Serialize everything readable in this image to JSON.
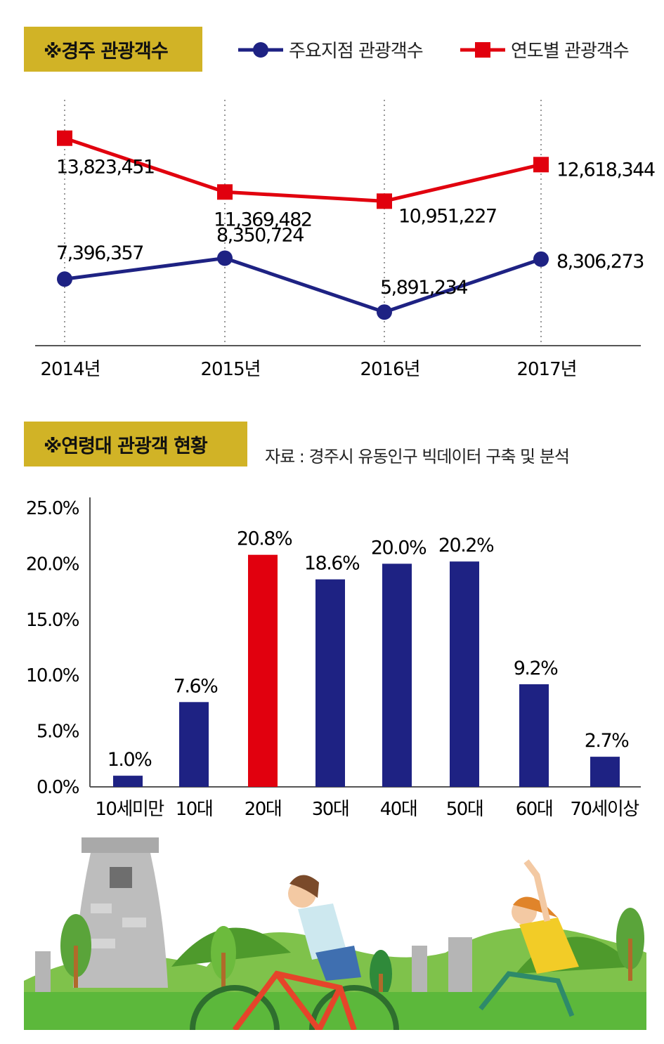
{
  "section1": {
    "title": "※경주 관광객수"
  },
  "section2": {
    "title": "※연령대 관광객 현황",
    "source": "자료 : 경주시 유동인구 빅데이터 구축 및 분석"
  },
  "colors": {
    "blue": "#1e2283",
    "red": "#e1000e",
    "gold": "#d1b326",
    "grass": "#5cb83b"
  },
  "chart_data": [
    {
      "type": "line",
      "title": "※경주 관광객수",
      "categories": [
        "2014년",
        "2015년",
        "2016년",
        "2017년"
      ],
      "series": [
        {
          "name": "주요지점 관광객수",
          "color": "#1e2283",
          "marker": "circle",
          "values": [
            7396357,
            8350724,
            5891234,
            8306273
          ],
          "labels": [
            "7,396,357",
            "8,350,724",
            "5,891,234",
            "8,306,273"
          ]
        },
        {
          "name": "연도별 관광객수",
          "color": "#e1000e",
          "marker": "square",
          "values": [
            13823451,
            11369482,
            10951227,
            12618344
          ],
          "labels": [
            "13,823,451",
            "11,369,482",
            "10,951,227",
            "12,618,344"
          ]
        }
      ],
      "grid": "vertical dotted lines",
      "legend": "top-right"
    },
    {
      "type": "bar",
      "title": "※연령대 관광객 현황",
      "categories": [
        "10세미만",
        "10대",
        "20대",
        "30대",
        "40대",
        "50대",
        "60대",
        "70세이상"
      ],
      "values": [
        1.0,
        7.6,
        20.8,
        18.6,
        20.0,
        20.2,
        9.2,
        2.7
      ],
      "labels": [
        "1.0%",
        "7.6%",
        "20.8%",
        "18.6%",
        "20.0%",
        "20.2%",
        "9.2%",
        "2.7%"
      ],
      "colors": [
        "#1e2283",
        "#1e2283",
        "#e1000e",
        "#1e2283",
        "#1e2283",
        "#1e2283",
        "#1e2283",
        "#1e2283"
      ],
      "ylim": [
        0,
        25
      ],
      "yticks": [
        "0.0%",
        "5.0%",
        "10.0%",
        "15.0%",
        "20.0%",
        "25.0%"
      ],
      "yticks_values": [
        0,
        5,
        10,
        15,
        20,
        25
      ]
    }
  ]
}
